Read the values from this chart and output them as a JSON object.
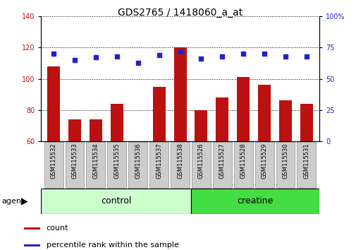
{
  "title": "GDS2765 / 1418060_a_at",
  "categories": [
    "GSM115532",
    "GSM115533",
    "GSM115534",
    "GSM115535",
    "GSM115536",
    "GSM115537",
    "GSM115538",
    "GSM115526",
    "GSM115527",
    "GSM115528",
    "GSM115529",
    "GSM115530",
    "GSM115531"
  ],
  "bar_values": [
    108,
    74,
    74,
    84,
    60,
    95,
    120,
    80,
    88,
    101,
    96,
    86,
    84
  ],
  "dot_values": [
    70,
    65,
    67,
    68,
    63,
    69,
    72,
    66,
    68,
    70,
    70,
    68,
    68
  ],
  "ylim_left": [
    60,
    140
  ],
  "ylim_right": [
    0,
    100
  ],
  "yticks_left": [
    60,
    80,
    100,
    120,
    140
  ],
  "yticks_right": [
    0,
    25,
    50,
    75,
    100
  ],
  "bar_color": "#bb1111",
  "dot_color": "#2222cc",
  "control_color": "#ccffcc",
  "creatine_color": "#44dd44",
  "tick_box_color": "#cccccc",
  "control_label": "control",
  "creatine_label": "creatine",
  "agent_label": "agent",
  "legend_count": "count",
  "legend_percentile": "percentile rank within the sample",
  "n_control": 7,
  "n_creatine": 6,
  "bar_width": 0.6,
  "title_fontsize": 10,
  "tick_fontsize": 7,
  "label_fontsize": 8
}
